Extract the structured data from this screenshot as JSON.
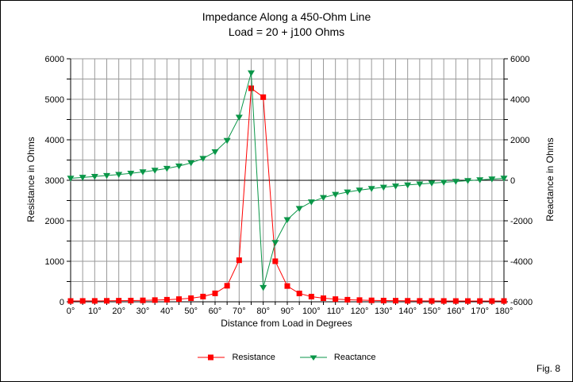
{
  "figure": {
    "fig_label": "Fig. 8"
  },
  "chart_data": {
    "type": "line",
    "title": "Impedance Along a 450-Ohm Line",
    "subtitle": "Load = 20 + j100 Ohms",
    "grid_color": "#9a9a9a",
    "axis_color": "#000000",
    "background_color": "#ffffff",
    "legend_position": "bottom-center",
    "grid": "on",
    "x_axis": {
      "title": "Distance from Load in Degrees",
      "min": 0,
      "max": 180,
      "minor_step": 5,
      "ticks": [
        0,
        10,
        20,
        30,
        40,
        50,
        60,
        70,
        80,
        90,
        100,
        110,
        120,
        130,
        140,
        150,
        160,
        170,
        180
      ],
      "tick_labels": [
        "0°",
        "10°",
        "20°",
        "30°",
        "40°",
        "50°",
        "60°",
        "70°",
        "80°",
        "90°",
        "100°",
        "110°",
        "120°",
        "130°",
        "140°",
        "150°",
        "160°",
        "170°",
        "180°"
      ]
    },
    "left_axis": {
      "title": "Resistance in Ohms",
      "min": 0,
      "max": 6000,
      "grid_step": 500,
      "minor_tick_step": 500,
      "ticks": [
        0,
        1000,
        2000,
        3000,
        4000,
        5000,
        6000
      ],
      "tick_labels": [
        "0",
        "1000",
        "2000",
        "3000",
        "4000",
        "5000",
        "6000"
      ]
    },
    "right_axis": {
      "title": "Reactance in Ohms",
      "min": -6000,
      "max": 6000,
      "minor_tick_step": 1000,
      "zero_line": true,
      "ticks": [
        -6000,
        -4000,
        -2000,
        0,
        2000,
        4000,
        6000
      ],
      "tick_labels": [
        "-6000",
        "-4000",
        "-2000",
        "0",
        "2000",
        "4000",
        "6000"
      ]
    },
    "x": [
      0,
      5,
      10,
      15,
      20,
      25,
      30,
      35,
      40,
      45,
      50,
      55,
      60,
      65,
      70,
      75,
      80,
      85,
      90,
      95,
      100,
      105,
      110,
      115,
      120,
      125,
      130,
      135,
      140,
      145,
      150,
      155,
      160,
      165,
      170,
      175,
      180
    ],
    "series": [
      {
        "name": "Resistance",
        "axis": "left",
        "color": "#ff0000",
        "marker": "square",
        "marker_size": 7,
        "values": [
          20,
          21,
          22,
          24,
          27,
          30,
          35,
          42,
          51,
          66,
          89,
          129,
          208,
          396,
          1026,
          5272,
          5052,
          1001,
          389,
          206,
          128,
          88,
          66,
          51,
          42,
          35,
          30,
          27,
          24,
          22,
          21,
          20,
          19,
          19,
          19,
          19,
          20
        ]
      },
      {
        "name": "Reactance",
        "axis": "right",
        "color": "#0a9648",
        "marker": "triangle-down",
        "marker_size": 9,
        "values": [
          100,
          142,
          186,
          234,
          287,
          345,
          412,
          490,
          585,
          703,
          859,
          1076,
          1404,
          1963,
          3110,
          5303,
          -5296,
          -3075,
          -1947,
          -1395,
          -1071,
          -855,
          -701,
          -583,
          -488,
          -410,
          -344,
          -285,
          -233,
          -186,
          -141,
          -99,
          -59,
          -19,
          20,
          60,
          100
        ]
      }
    ]
  }
}
